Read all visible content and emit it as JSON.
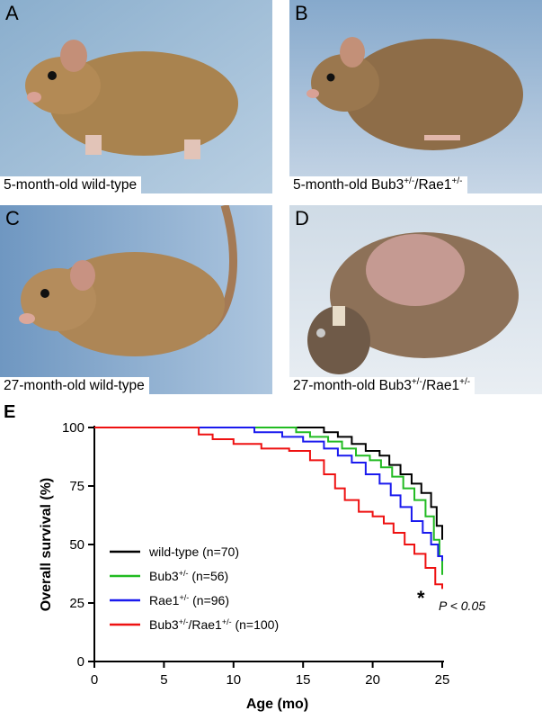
{
  "photos": [
    {
      "letter": "A",
      "caption": "5-month-old wild-type",
      "sup": "",
      "caption_tail": ""
    },
    {
      "letter": "B",
      "caption": "5-month-old Bub3",
      "sup": "+/-",
      "caption_tail": "/Rae1",
      "sup2": "+/-"
    },
    {
      "letter": "C",
      "caption": "27-month-old wild-type",
      "sup": "",
      "caption_tail": ""
    },
    {
      "letter": "D",
      "caption": "27-month-old Bub3",
      "sup": "+/-",
      "caption_tail": "/Rae1",
      "sup2": "+/-"
    }
  ],
  "panel_e_letter": "E",
  "chart_data": {
    "type": "line",
    "step": true,
    "xlabel": "Age (mo)",
    "ylabel": "Overall survival (%)",
    "xlim": [
      0,
      25
    ],
    "ylim": [
      0,
      100
    ],
    "xticks": [
      "0",
      "5",
      "10",
      "15",
      "20",
      "25"
    ],
    "yticks": [
      "0",
      "25",
      "50",
      "75",
      "100"
    ],
    "annotation": {
      "star": "*",
      "text": "P < 0.05"
    },
    "legend_position": "bottom-left",
    "series": [
      {
        "name": "wild-type (n=70)",
        "legend_base": "wild-type",
        "legend_sup": "",
        "legend_rest": " (n=70)",
        "color": "#000000",
        "x": [
          0,
          15.5,
          16.5,
          17.5,
          18.5,
          19.5,
          20.5,
          21.2,
          22.0,
          22.8,
          23.5,
          24.2,
          24.6,
          25.0
        ],
        "y": [
          100,
          100,
          98,
          96,
          93,
          90,
          88,
          84,
          80,
          76,
          72,
          66,
          58,
          52
        ]
      },
      {
        "name": "Bub3+/- (n=56)",
        "legend_base": "Bub3",
        "legend_sup": "+/-",
        "legend_rest": " (n=56)",
        "color": "#22bb22",
        "x": [
          0,
          9.5,
          14.5,
          15.5,
          16.8,
          17.8,
          18.8,
          19.8,
          20.6,
          21.4,
          22.2,
          23.0,
          23.8,
          24.4,
          24.8,
          25.0
        ],
        "y": [
          100,
          100,
          98,
          96,
          94,
          91,
          88,
          86,
          83,
          79,
          74,
          69,
          62,
          52,
          45,
          37
        ]
      },
      {
        "name": "Rae1+/- (n=96)",
        "legend_base": "Rae1",
        "legend_sup": "+/-",
        "legend_rest": " (n=96)",
        "color": "#1a1aee",
        "x": [
          0,
          8.5,
          11.5,
          13.5,
          15.0,
          16.5,
          17.5,
          18.5,
          19.5,
          20.5,
          21.3,
          22.0,
          22.8,
          23.6,
          24.2,
          24.7,
          25.0
        ],
        "y": [
          100,
          100,
          98,
          96,
          94,
          91,
          88,
          85,
          80,
          76,
          71,
          66,
          60,
          55,
          50,
          45,
          43
        ]
      },
      {
        "name": "Bub3+/-/Rae1+/- (n=100)",
        "legend_base": "Bub3",
        "legend_sup": "+/-",
        "legend_mid": "/Rae1",
        "legend_sup2": "+/-",
        "legend_rest": " (n=100)",
        "color": "#ee1111",
        "x": [
          0,
          6.2,
          7.5,
          8.5,
          10.0,
          12.0,
          14.0,
          15.5,
          16.5,
          17.3,
          18.0,
          19.0,
          20.0,
          20.8,
          21.5,
          22.3,
          23.0,
          23.8,
          24.5,
          25.0
        ],
        "y": [
          100,
          100,
          97,
          95,
          93,
          91,
          90,
          86,
          80,
          74,
          69,
          64,
          62,
          59,
          55,
          50,
          46,
          40,
          33,
          31
        ]
      }
    ]
  }
}
